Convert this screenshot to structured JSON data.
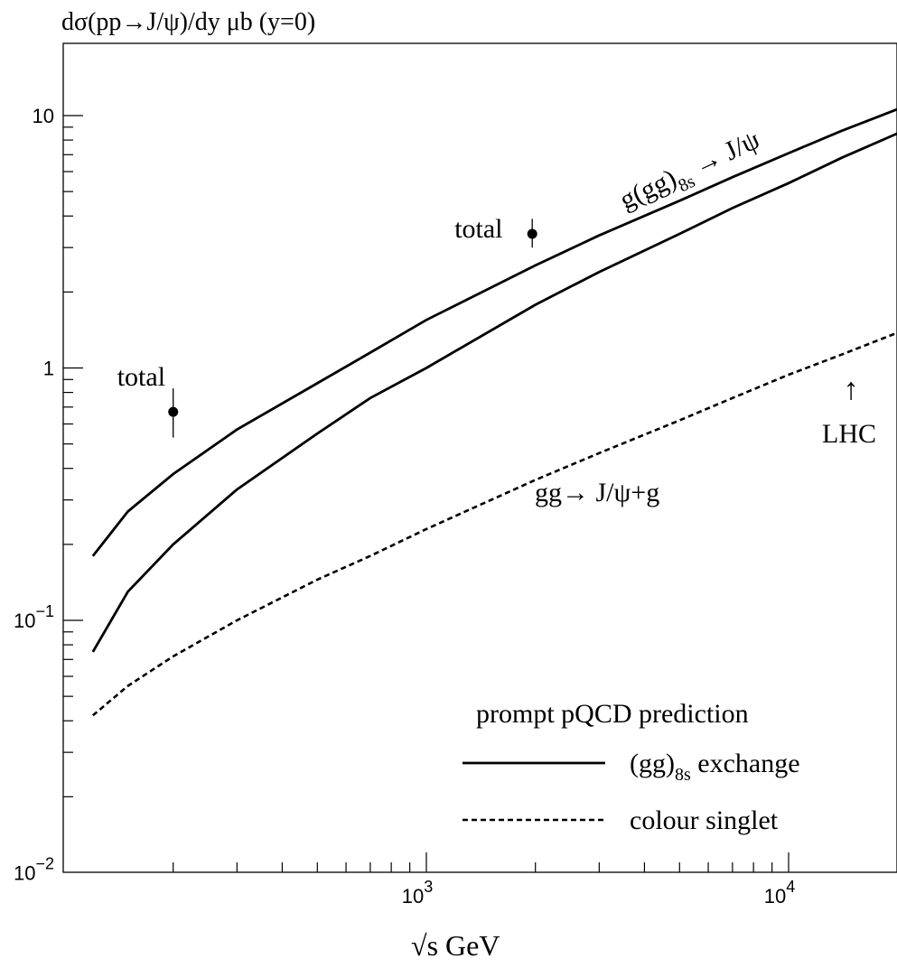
{
  "chart_data": {
    "type": "line",
    "title": "",
    "ylabel": "dσ(pp→J/ψ)/dy  μb    (y=0)",
    "xlabel": "√s  GeV",
    "xscale": "log",
    "yscale": "log",
    "xlim": [
      120,
      20000
    ],
    "ylim": [
      0.01,
      20
    ],
    "grid": false,
    "xticks_major": [
      {
        "value": 1000,
        "base": "10",
        "exp": "3"
      },
      {
        "value": 10000,
        "base": "10",
        "exp": "4"
      }
    ],
    "yticks_major": [
      {
        "value": 0.01,
        "base": "10",
        "exp": "−2"
      },
      {
        "value": 0.1,
        "base": "10",
        "exp": "−1"
      },
      {
        "value": 1,
        "base": "1",
        "exp": ""
      },
      {
        "value": 10,
        "base": "10",
        "exp": ""
      }
    ],
    "series": [
      {
        "name": "g(gg)8s → J/ψ",
        "style": "solid",
        "x": [
          120,
          150,
          200,
          300,
          500,
          700,
          1000,
          2000,
          3000,
          5000,
          7000,
          10000,
          14000,
          20000
        ],
        "y": [
          0.18,
          0.27,
          0.38,
          0.57,
          0.87,
          1.15,
          1.55,
          2.55,
          3.35,
          4.6,
          5.7,
          7.1,
          8.7,
          10.6
        ]
      },
      {
        "name": "(gg)8s exchange",
        "style": "solid",
        "x": [
          120,
          150,
          200,
          300,
          500,
          700,
          1000,
          2000,
          3000,
          5000,
          7000,
          10000,
          14000,
          20000
        ],
        "y": [
          0.075,
          0.13,
          0.2,
          0.33,
          0.55,
          0.76,
          1.0,
          1.78,
          2.4,
          3.4,
          4.3,
          5.4,
          6.8,
          8.5
        ]
      },
      {
        "name": "gg→ J/ψ+g",
        "style": "dashed",
        "x": [
          120,
          150,
          200,
          300,
          500,
          700,
          1000,
          2000,
          3000,
          5000,
          7000,
          10000,
          14000,
          20000
        ],
        "y": [
          0.042,
          0.055,
          0.072,
          0.1,
          0.145,
          0.18,
          0.23,
          0.36,
          0.46,
          0.62,
          0.76,
          0.94,
          1.13,
          1.38
        ]
      }
    ],
    "points": [
      {
        "label": "total",
        "x": 200,
        "y": 0.67,
        "yerr_low": 0.53,
        "yerr_high": 0.83
      },
      {
        "label": "total",
        "x": 1960,
        "y": 3.4,
        "yerr_low": 3.0,
        "yerr_high": 3.9
      }
    ],
    "annotations": {
      "top_curve": {
        "main": "g(gg)",
        "sub": "8s",
        "tail": "→ J/ψ"
      },
      "cs_curve": "gg→ J/ψ+g",
      "lhc_arrow": "↑",
      "lhc_label": "LHC"
    },
    "legend": {
      "placement": "bottom-right",
      "title": "prompt pQCD prediction",
      "entries": [
        {
          "style": "solid",
          "label_main": "(gg)",
          "label_sub": "8s",
          "label_tail": " exchange"
        },
        {
          "style": "dashed",
          "label_main": "colour singlet",
          "label_sub": "",
          "label_tail": ""
        }
      ]
    }
  }
}
